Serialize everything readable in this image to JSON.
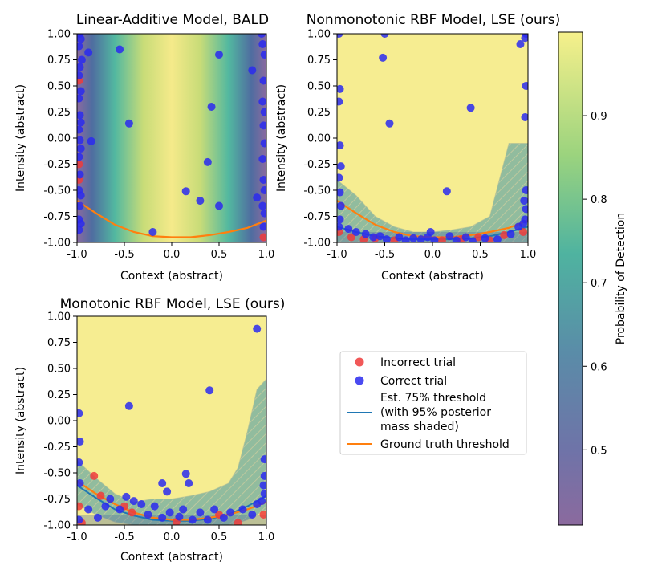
{
  "chart_data": [
    {
      "type": "scatter",
      "title": "Linear-Additive Model, BALD",
      "xlabel": "Context (abstract)",
      "ylabel": "Intensity (abstract)",
      "xlim": [
        -1.0,
        1.0
      ],
      "ylim": [
        -1.0,
        1.0
      ],
      "xticks": [
        "-1.0",
        "-0.5",
        "0.0",
        "0.5",
        "1.0"
      ],
      "yticks": [
        "1.00",
        "0.75",
        "0.50",
        "0.25",
        "0.00",
        "-0.25",
        "-0.50",
        "-0.75",
        "-1.00"
      ],
      "background": "probability varies with context only: low (~0.45) near x=±1, high (~0.99) at center",
      "series": [
        {
          "name": "Incorrect trial",
          "points": [
            [
              -0.98,
              -0.25
            ],
            [
              -0.98,
              0.55
            ],
            [
              0.97,
              -0.95
            ],
            [
              -0.98,
              -0.4
            ]
          ]
        },
        {
          "name": "Correct trial",
          "points": [
            [
              -0.97,
              1.0
            ],
            [
              -0.96,
              0.95
            ],
            [
              -0.98,
              0.88
            ],
            [
              -0.95,
              0.75
            ],
            [
              -0.97,
              0.68
            ],
            [
              -0.98,
              0.6
            ],
            [
              -0.96,
              0.45
            ],
            [
              -0.98,
              0.38
            ],
            [
              -0.97,
              0.22
            ],
            [
              -0.96,
              0.15
            ],
            [
              -0.98,
              0.08
            ],
            [
              -0.97,
              -0.02
            ],
            [
              -0.96,
              -0.1
            ],
            [
              -0.98,
              -0.18
            ],
            [
              -0.97,
              -0.35
            ],
            [
              -0.98,
              -0.5
            ],
            [
              -0.96,
              -0.55
            ],
            [
              -0.97,
              -0.65
            ],
            [
              -0.98,
              -0.78
            ],
            [
              -0.96,
              -0.82
            ],
            [
              -0.98,
              -0.88
            ],
            [
              -0.88,
              0.82
            ],
            [
              -0.85,
              -0.03
            ],
            [
              -0.55,
              0.85
            ],
            [
              -0.45,
              0.14
            ],
            [
              -0.2,
              -0.9
            ],
            [
              0.15,
              -0.51
            ],
            [
              0.3,
              -0.6
            ],
            [
              0.38,
              -0.23
            ],
            [
              0.42,
              0.3
            ],
            [
              0.5,
              -0.65
            ],
            [
              0.5,
              0.8
            ],
            [
              0.85,
              0.65
            ],
            [
              0.9,
              -0.57
            ],
            [
              0.95,
              1.0
            ],
            [
              0.96,
              0.9
            ],
            [
              0.98,
              0.8
            ],
            [
              0.97,
              0.55
            ],
            [
              0.96,
              0.35
            ],
            [
              0.98,
              0.25
            ],
            [
              0.97,
              0.12
            ],
            [
              0.98,
              -0.05
            ],
            [
              0.96,
              -0.2
            ],
            [
              0.97,
              -0.4
            ],
            [
              0.98,
              -0.5
            ],
            [
              0.96,
              -0.65
            ],
            [
              0.98,
              -0.72
            ],
            [
              0.97,
              -0.85
            ]
          ]
        }
      ],
      "threshold_curve": {
        "name": "Ground truth threshold",
        "x": [
          -1.0,
          -0.8,
          -0.6,
          -0.4,
          -0.2,
          0.0,
          0.2,
          0.4,
          0.6,
          0.8,
          1.0
        ],
        "y": [
          -0.6,
          -0.72,
          -0.83,
          -0.9,
          -0.94,
          -0.95,
          -0.95,
          -0.93,
          -0.9,
          -0.86,
          -0.79
        ]
      }
    },
    {
      "type": "scatter",
      "title": "Nonmonotonic RBF Model, LSE (ours)",
      "xlabel": "Context (abstract)",
      "ylabel": "Intensity (abstract)",
      "xlim": [
        -1.0,
        1.0
      ],
      "ylim": [
        -1.0,
        1.0
      ],
      "xticks": [
        "-1.0",
        "-0.5",
        "0.0",
        "0.5",
        "1.0"
      ],
      "yticks": [
        "1.00",
        "0.75",
        "0.50",
        "0.25",
        "0.00",
        "-0.25",
        "-0.50",
        "-0.75",
        "-1.00"
      ],
      "series": [
        {
          "name": "Incorrect trial",
          "points": [
            [
              -0.98,
              -0.9
            ],
            [
              -0.85,
              -0.95
            ],
            [
              -0.72,
              -0.97
            ],
            [
              -0.6,
              -0.96
            ],
            [
              -0.4,
              -0.98
            ],
            [
              0.1,
              -0.98
            ],
            [
              0.3,
              -0.97
            ],
            [
              0.48,
              -0.95
            ],
            [
              0.6,
              -0.98
            ],
            [
              0.75,
              -0.93
            ],
            [
              0.95,
              -0.9
            ]
          ]
        },
        {
          "name": "Correct trial",
          "points": [
            [
              -0.98,
              1.0
            ],
            [
              -0.97,
              0.47
            ],
            [
              -0.98,
              0.35
            ],
            [
              -0.97,
              -0.07
            ],
            [
              -0.96,
              -0.27
            ],
            [
              -0.98,
              -0.38
            ],
            [
              -0.97,
              -0.52
            ],
            [
              -0.96,
              -0.65
            ],
            [
              -0.97,
              -0.78
            ],
            [
              -0.98,
              -0.85
            ],
            [
              -0.5,
              1.0
            ],
            [
              -0.52,
              0.77
            ],
            [
              -0.45,
              0.14
            ],
            [
              -0.02,
              -0.9
            ],
            [
              0.15,
              -0.51
            ],
            [
              0.4,
              0.29
            ],
            [
              0.92,
              0.9
            ],
            [
              0.97,
              0.96
            ],
            [
              0.98,
              1.0
            ],
            [
              0.98,
              0.5
            ],
            [
              0.97,
              0.2
            ],
            [
              0.98,
              -0.5
            ],
            [
              0.96,
              -0.6
            ],
            [
              0.98,
              -0.68
            ],
            [
              0.97,
              -0.78
            ],
            [
              -0.88,
              -0.87
            ],
            [
              -0.8,
              -0.9
            ],
            [
              -0.7,
              -0.92
            ],
            [
              -0.62,
              -0.95
            ],
            [
              -0.55,
              -0.94
            ],
            [
              -0.48,
              -0.97
            ],
            [
              -0.35,
              -0.95
            ],
            [
              -0.28,
              -0.98
            ],
            [
              -0.2,
              -0.96
            ],
            [
              -0.12,
              -0.97
            ],
            [
              -0.05,
              -0.95
            ],
            [
              0.02,
              -0.98
            ],
            [
              0.18,
              -0.94
            ],
            [
              0.25,
              -0.98
            ],
            [
              0.35,
              -0.95
            ],
            [
              0.42,
              -0.99
            ],
            [
              0.55,
              -0.96
            ],
            [
              0.68,
              -0.97
            ],
            [
              0.82,
              -0.92
            ],
            [
              0.9,
              -0.85
            ],
            [
              0.95,
              -0.82
            ]
          ]
        }
      ],
      "threshold_curve": {
        "name": "Ground truth threshold",
        "x": [
          -1.0,
          -0.8,
          -0.6,
          -0.4,
          -0.2,
          0.0,
          0.2,
          0.4,
          0.6,
          0.8,
          1.0
        ],
        "y": [
          -0.6,
          -0.72,
          -0.83,
          -0.9,
          -0.94,
          -0.95,
          -0.95,
          -0.93,
          -0.9,
          -0.86,
          -0.79
        ]
      },
      "estimated_threshold": {
        "name": "Est. 75% threshold",
        "x": [
          -1.0,
          -0.8,
          -0.6,
          -0.4,
          -0.2,
          0.0,
          0.2,
          0.4,
          0.6,
          0.8,
          1.0
        ],
        "y": [
          -0.85,
          -0.9,
          -0.94,
          -0.96,
          -0.97,
          -0.97,
          -0.97,
          -0.96,
          -0.94,
          -0.9,
          -0.85
        ]
      },
      "posterior_band": {
        "x": [
          -1.0,
          -0.8,
          -0.6,
          -0.4,
          -0.2,
          0.0,
          0.2,
          0.4,
          0.6,
          0.7,
          0.8,
          0.9,
          1.0
        ],
        "upper": [
          -0.4,
          -0.55,
          -0.75,
          -0.85,
          -0.9,
          -0.9,
          -0.88,
          -0.85,
          -0.75,
          -0.4,
          -0.05,
          -0.05,
          -0.05
        ],
        "lower": [
          -1.0,
          -1.0,
          -1.0,
          -1.0,
          -1.0,
          -1.0,
          -1.0,
          -1.0,
          -1.0,
          -1.0,
          -1.0,
          -1.0,
          -1.0
        ]
      }
    },
    {
      "type": "scatter",
      "title": "Monotonic RBF Model, LSE (ours)",
      "xlabel": "Context (abstract)",
      "ylabel": "Intensity (abstract)",
      "xlim": [
        -1.0,
        1.0
      ],
      "ylim": [
        -1.0,
        1.0
      ],
      "xticks": [
        "-1.0",
        "-0.5",
        "0.0",
        "0.5",
        "1.0"
      ],
      "yticks": [
        "1.00",
        "0.75",
        "0.50",
        "0.25",
        "0.00",
        "-0.25",
        "-0.50",
        "-0.75",
        "-1.00"
      ],
      "series": [
        {
          "name": "Incorrect trial",
          "points": [
            [
              -0.82,
              -0.53
            ],
            [
              -0.98,
              -0.82
            ],
            [
              -0.95,
              -0.98
            ],
            [
              -0.75,
              -0.72
            ],
            [
              -0.5,
              -0.82
            ],
            [
              -0.42,
              -0.88
            ],
            [
              0.05,
              -0.97
            ],
            [
              0.5,
              -0.9
            ],
            [
              0.7,
              -0.98
            ],
            [
              0.97,
              -0.9
            ]
          ]
        },
        {
          "name": "Correct trial",
          "points": [
            [
              -0.98,
              0.07
            ],
            [
              -0.97,
              -0.2
            ],
            [
              -0.98,
              -0.4
            ],
            [
              -0.97,
              -0.6
            ],
            [
              -0.98,
              -0.95
            ],
            [
              -0.45,
              0.14
            ],
            [
              0.4,
              0.29
            ],
            [
              0.9,
              0.88
            ],
            [
              0.98,
              -0.37
            ],
            [
              0.15,
              -0.51
            ],
            [
              0.18,
              -0.6
            ],
            [
              -0.1,
              -0.6
            ],
            [
              -0.05,
              -0.68
            ],
            [
              0.98,
              -0.53
            ],
            [
              0.97,
              -0.62
            ],
            [
              0.98,
              -0.7
            ],
            [
              -0.88,
              -0.85
            ],
            [
              -0.78,
              -0.93
            ],
            [
              -0.7,
              -0.82
            ],
            [
              -0.65,
              -0.75
            ],
            [
              -0.55,
              -0.85
            ],
            [
              -0.48,
              -0.73
            ],
            [
              -0.4,
              -0.77
            ],
            [
              -0.32,
              -0.8
            ],
            [
              -0.25,
              -0.9
            ],
            [
              -0.18,
              -0.82
            ],
            [
              -0.1,
              -0.93
            ],
            [
              -0.02,
              -0.88
            ],
            [
              0.08,
              -0.92
            ],
            [
              0.12,
              -0.85
            ],
            [
              0.22,
              -0.95
            ],
            [
              0.3,
              -0.88
            ],
            [
              0.38,
              -0.95
            ],
            [
              0.45,
              -0.85
            ],
            [
              0.55,
              -0.93
            ],
            [
              0.62,
              -0.88
            ],
            [
              0.75,
              -0.85
            ],
            [
              0.85,
              -0.9
            ],
            [
              0.9,
              -0.8
            ],
            [
              0.95,
              -0.77
            ]
          ]
        }
      ],
      "threshold_curve": {
        "name": "Ground truth threshold",
        "x": [
          -1.0,
          -0.8,
          -0.6,
          -0.4,
          -0.2,
          0.0,
          0.2,
          0.4,
          0.6,
          0.8,
          1.0
        ],
        "y": [
          -0.58,
          -0.7,
          -0.8,
          -0.88,
          -0.93,
          -0.95,
          -0.95,
          -0.93,
          -0.9,
          -0.85,
          -0.78
        ]
      },
      "estimated_threshold": {
        "name": "Est. 75% threshold",
        "x": [
          -1.0,
          -0.8,
          -0.6,
          -0.4,
          -0.2,
          0.0,
          0.2,
          0.4,
          0.6,
          0.8,
          1.0
        ],
        "y": [
          -0.62,
          -0.74,
          -0.85,
          -0.91,
          -0.95,
          -0.96,
          -0.96,
          -0.94,
          -0.9,
          -0.82,
          -0.72
        ]
      },
      "posterior_band": {
        "x": [
          -1.0,
          -0.8,
          -0.6,
          -0.4,
          -0.2,
          0.0,
          0.2,
          0.4,
          0.6,
          0.7,
          0.8,
          0.9,
          1.0
        ],
        "upper": [
          -0.38,
          -0.55,
          -0.7,
          -0.78,
          -0.75,
          -0.75,
          -0.72,
          -0.68,
          -0.6,
          -0.45,
          -0.1,
          0.3,
          0.4
        ],
        "lower": [
          -0.8,
          -0.9,
          -0.97,
          -1.0,
          -1.0,
          -1.0,
          -1.0,
          -1.0,
          -1.0,
          -0.98,
          -0.95,
          -0.9,
          -0.85
        ]
      }
    }
  ],
  "legend": {
    "incorrect": "Incorrect trial",
    "correct": "Correct trial",
    "est_line1": "Est. 75% threshold",
    "est_line2": "(with 95% posterior",
    "est_line3": "mass shaded)",
    "ground_truth": "Ground truth threshold"
  },
  "colorbar": {
    "label": "Probability of Detection",
    "range": [
      0.41,
      1.0
    ],
    "ticks": [
      "0.9",
      "0.8",
      "0.7",
      "0.6",
      "0.5"
    ],
    "tick_values": [
      0.9,
      0.8,
      0.7,
      0.6,
      0.5
    ]
  },
  "colors": {
    "incorrect": "#ef3b3b",
    "correct": "#2a2aee",
    "estimated": "#1f77b4",
    "ground_truth": "#ff7f0e"
  }
}
